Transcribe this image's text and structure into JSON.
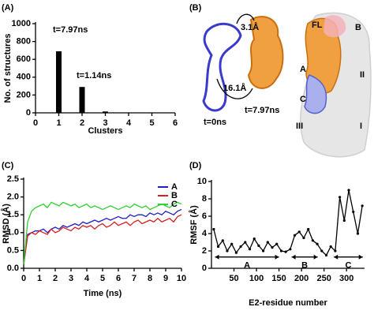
{
  "chart_data": [
    {
      "type": "bar",
      "panel_label": "(A)",
      "x_label": "Clusters",
      "y_label": "No. of structures",
      "x": [
        1,
        2,
        3
      ],
      "values": [
        690,
        290,
        15
      ],
      "color": "#000000",
      "xlim": [
        0,
        6
      ],
      "xticks": [
        0,
        1,
        2,
        3,
        4,
        5,
        6
      ],
      "ylim": [
        0,
        1000
      ],
      "yticks": [
        0,
        200,
        400,
        600,
        800,
        1000
      ],
      "annotations": [
        "t=7.97ns",
        "t=1.14ns"
      ]
    },
    {
      "type": "line",
      "panel_label": "(C)",
      "x_label": "Time (ns)",
      "y_label": "RMSD (Å)",
      "x": [
        0,
        0.25,
        0.5,
        0.75,
        1,
        1.25,
        1.5,
        1.75,
        2,
        2.25,
        2.5,
        2.75,
        3,
        3.25,
        3.5,
        3.75,
        4,
        4.25,
        4.5,
        4.75,
        5,
        5.25,
        5.5,
        5.75,
        6,
        6.25,
        6.5,
        6.75,
        7,
        7.25,
        7.5,
        7.75,
        8,
        8.25,
        8.5,
        8.75,
        9,
        9.25,
        9.5,
        9.75,
        10
      ],
      "series": [
        {
          "name": "A",
          "color": "#1f1fbf",
          "values": [
            0.1,
            0.95,
            1.0,
            1.05,
            1.05,
            1.1,
            1.0,
            1.1,
            1.15,
            1.1,
            1.2,
            1.15,
            1.2,
            1.25,
            1.2,
            1.3,
            1.25,
            1.3,
            1.35,
            1.3,
            1.35,
            1.4,
            1.35,
            1.4,
            1.45,
            1.4,
            1.4,
            1.5,
            1.45,
            1.5,
            1.5,
            1.45,
            1.55,
            1.5,
            1.55,
            1.5,
            1.6,
            1.55,
            1.5,
            1.6,
            1.65
          ]
        },
        {
          "name": "B",
          "color": "#d42020",
          "values": [
            0.1,
            0.9,
            1.0,
            0.95,
            1.05,
            1.0,
            0.95,
            1.1,
            1.0,
            1.05,
            1.15,
            1.1,
            1.05,
            1.15,
            1.1,
            1.2,
            1.15,
            1.2,
            1.1,
            1.2,
            1.25,
            1.15,
            1.2,
            1.3,
            1.2,
            1.25,
            1.3,
            1.2,
            1.3,
            1.35,
            1.25,
            1.3,
            1.35,
            1.3,
            1.4,
            1.3,
            1.35,
            1.4,
            1.3,
            1.45,
            1.5
          ]
        },
        {
          "name": "C",
          "color": "#2fd02f",
          "values": [
            0.1,
            1.3,
            1.6,
            1.7,
            1.75,
            1.8,
            1.7,
            1.85,
            1.8,
            1.75,
            1.85,
            1.8,
            1.75,
            1.8,
            1.7,
            1.75,
            1.8,
            1.7,
            1.75,
            1.7,
            1.65,
            1.7,
            1.75,
            1.7,
            1.65,
            1.7,
            1.75,
            1.7,
            1.8,
            1.75,
            1.7,
            1.75,
            1.65,
            1.7,
            1.75,
            1.8,
            1.75,
            1.7,
            1.8,
            1.85,
            1.8
          ]
        }
      ],
      "xlim": [
        0,
        10
      ],
      "xticks": [
        0,
        1,
        2,
        3,
        4,
        5,
        6,
        7,
        8,
        9,
        10
      ],
      "ylim": [
        0,
        2.5
      ],
      "yticks": [
        {
          "value": 0,
          "label": "0.0"
        },
        0.5,
        {
          "value": 1,
          "label": "1.0"
        },
        1.5,
        {
          "value": 2,
          "label": "2.0"
        },
        2.5
      ],
      "legend": "upper right"
    },
    {
      "type": "line",
      "panel_label": "(D)",
      "x_label": "E2-residue number",
      "y_label": "RMSF (Å)",
      "x": [
        5,
        15,
        25,
        35,
        45,
        55,
        65,
        75,
        85,
        95,
        105,
        115,
        125,
        135,
        145,
        155,
        165,
        175,
        185,
        195,
        205,
        215,
        225,
        235,
        245,
        255,
        265,
        275,
        285,
        295,
        305,
        315,
        325,
        335
      ],
      "values": [
        4.5,
        2.5,
        3.2,
        2.0,
        2.8,
        1.8,
        2.5,
        3.0,
        2.2,
        3.4,
        2.6,
        2.0,
        3.0,
        2.4,
        2.8,
        2.0,
        1.9,
        2.2,
        3.8,
        4.2,
        3.5,
        4.5,
        3.2,
        2.8,
        2.0,
        1.5,
        2.5,
        2.0,
        8.2,
        5.5,
        9.0,
        6.5,
        4.0,
        7.2
      ],
      "color": "#000000",
      "markers": true,
      "xlim": [
        0,
        340
      ],
      "xticks": [
        50,
        100,
        150,
        200,
        250,
        300
      ],
      "ylim": [
        0,
        10
      ],
      "yticks": [
        0,
        2,
        4,
        6,
        8,
        10
      ],
      "annotations": [
        "A",
        "B",
        "C"
      ]
    }
  ],
  "panel_b": {
    "panel_label": "(B)",
    "labels": [
      "3.1Å",
      "16.1Å",
      "t=0ns",
      "t=7.97ns",
      "FL",
      "B",
      "A",
      "II",
      "C",
      "III",
      "I"
    ]
  }
}
